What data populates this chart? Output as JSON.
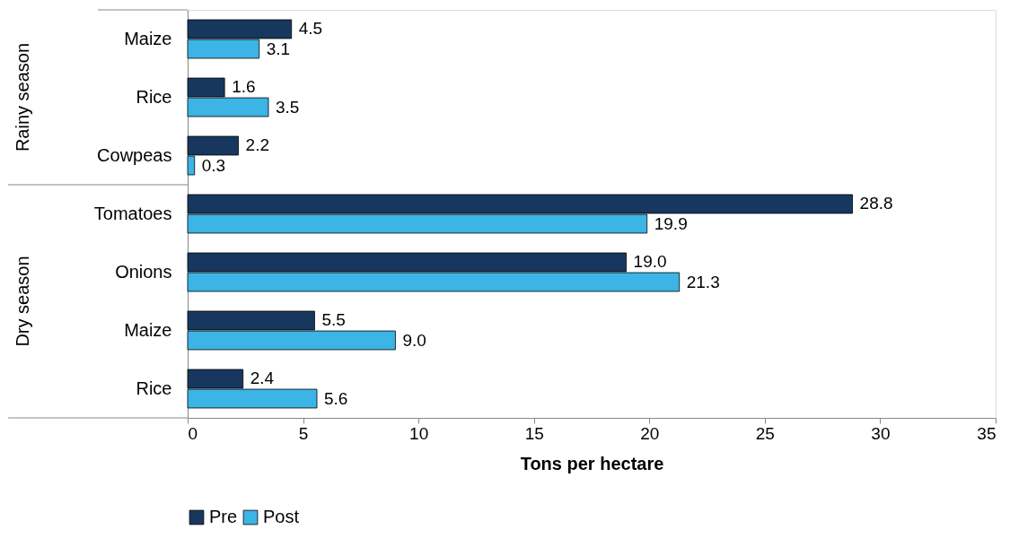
{
  "chart_data": {
    "type": "bar",
    "orientation": "horizontal",
    "categories": [
      "Maize",
      "Rice",
      "Cowpeas",
      "Tomatoes",
      "Onions",
      "Maize",
      "Rice"
    ],
    "series": [
      {
        "name": "Pre",
        "color": "#17375e",
        "values": [
          4.5,
          1.6,
          2.2,
          28.8,
          19,
          5.5,
          2.4
        ],
        "value_labels": [
          "4.5",
          "1.6",
          "2.2",
          "28.8",
          "19.0",
          "5.5",
          "2.4"
        ]
      },
      {
        "name": "Post",
        "color": "#3cb4e5",
        "values": [
          3.1,
          3.5,
          0.3,
          19.9,
          21.3,
          9,
          5.6
        ],
        "value_labels": [
          "3.1",
          "3.5",
          "0.3",
          "19.9",
          "21.3",
          "9.0",
          "5.6"
        ]
      }
    ],
    "xlabel": "Tons per hectare",
    "xlim": [
      0,
      35
    ],
    "xticks": [
      0,
      5,
      10,
      15,
      20,
      25,
      30,
      35
    ],
    "annotations": [
      "Rainy season",
      "Dry season"
    ],
    "grid": false,
    "legend": "bottom"
  }
}
